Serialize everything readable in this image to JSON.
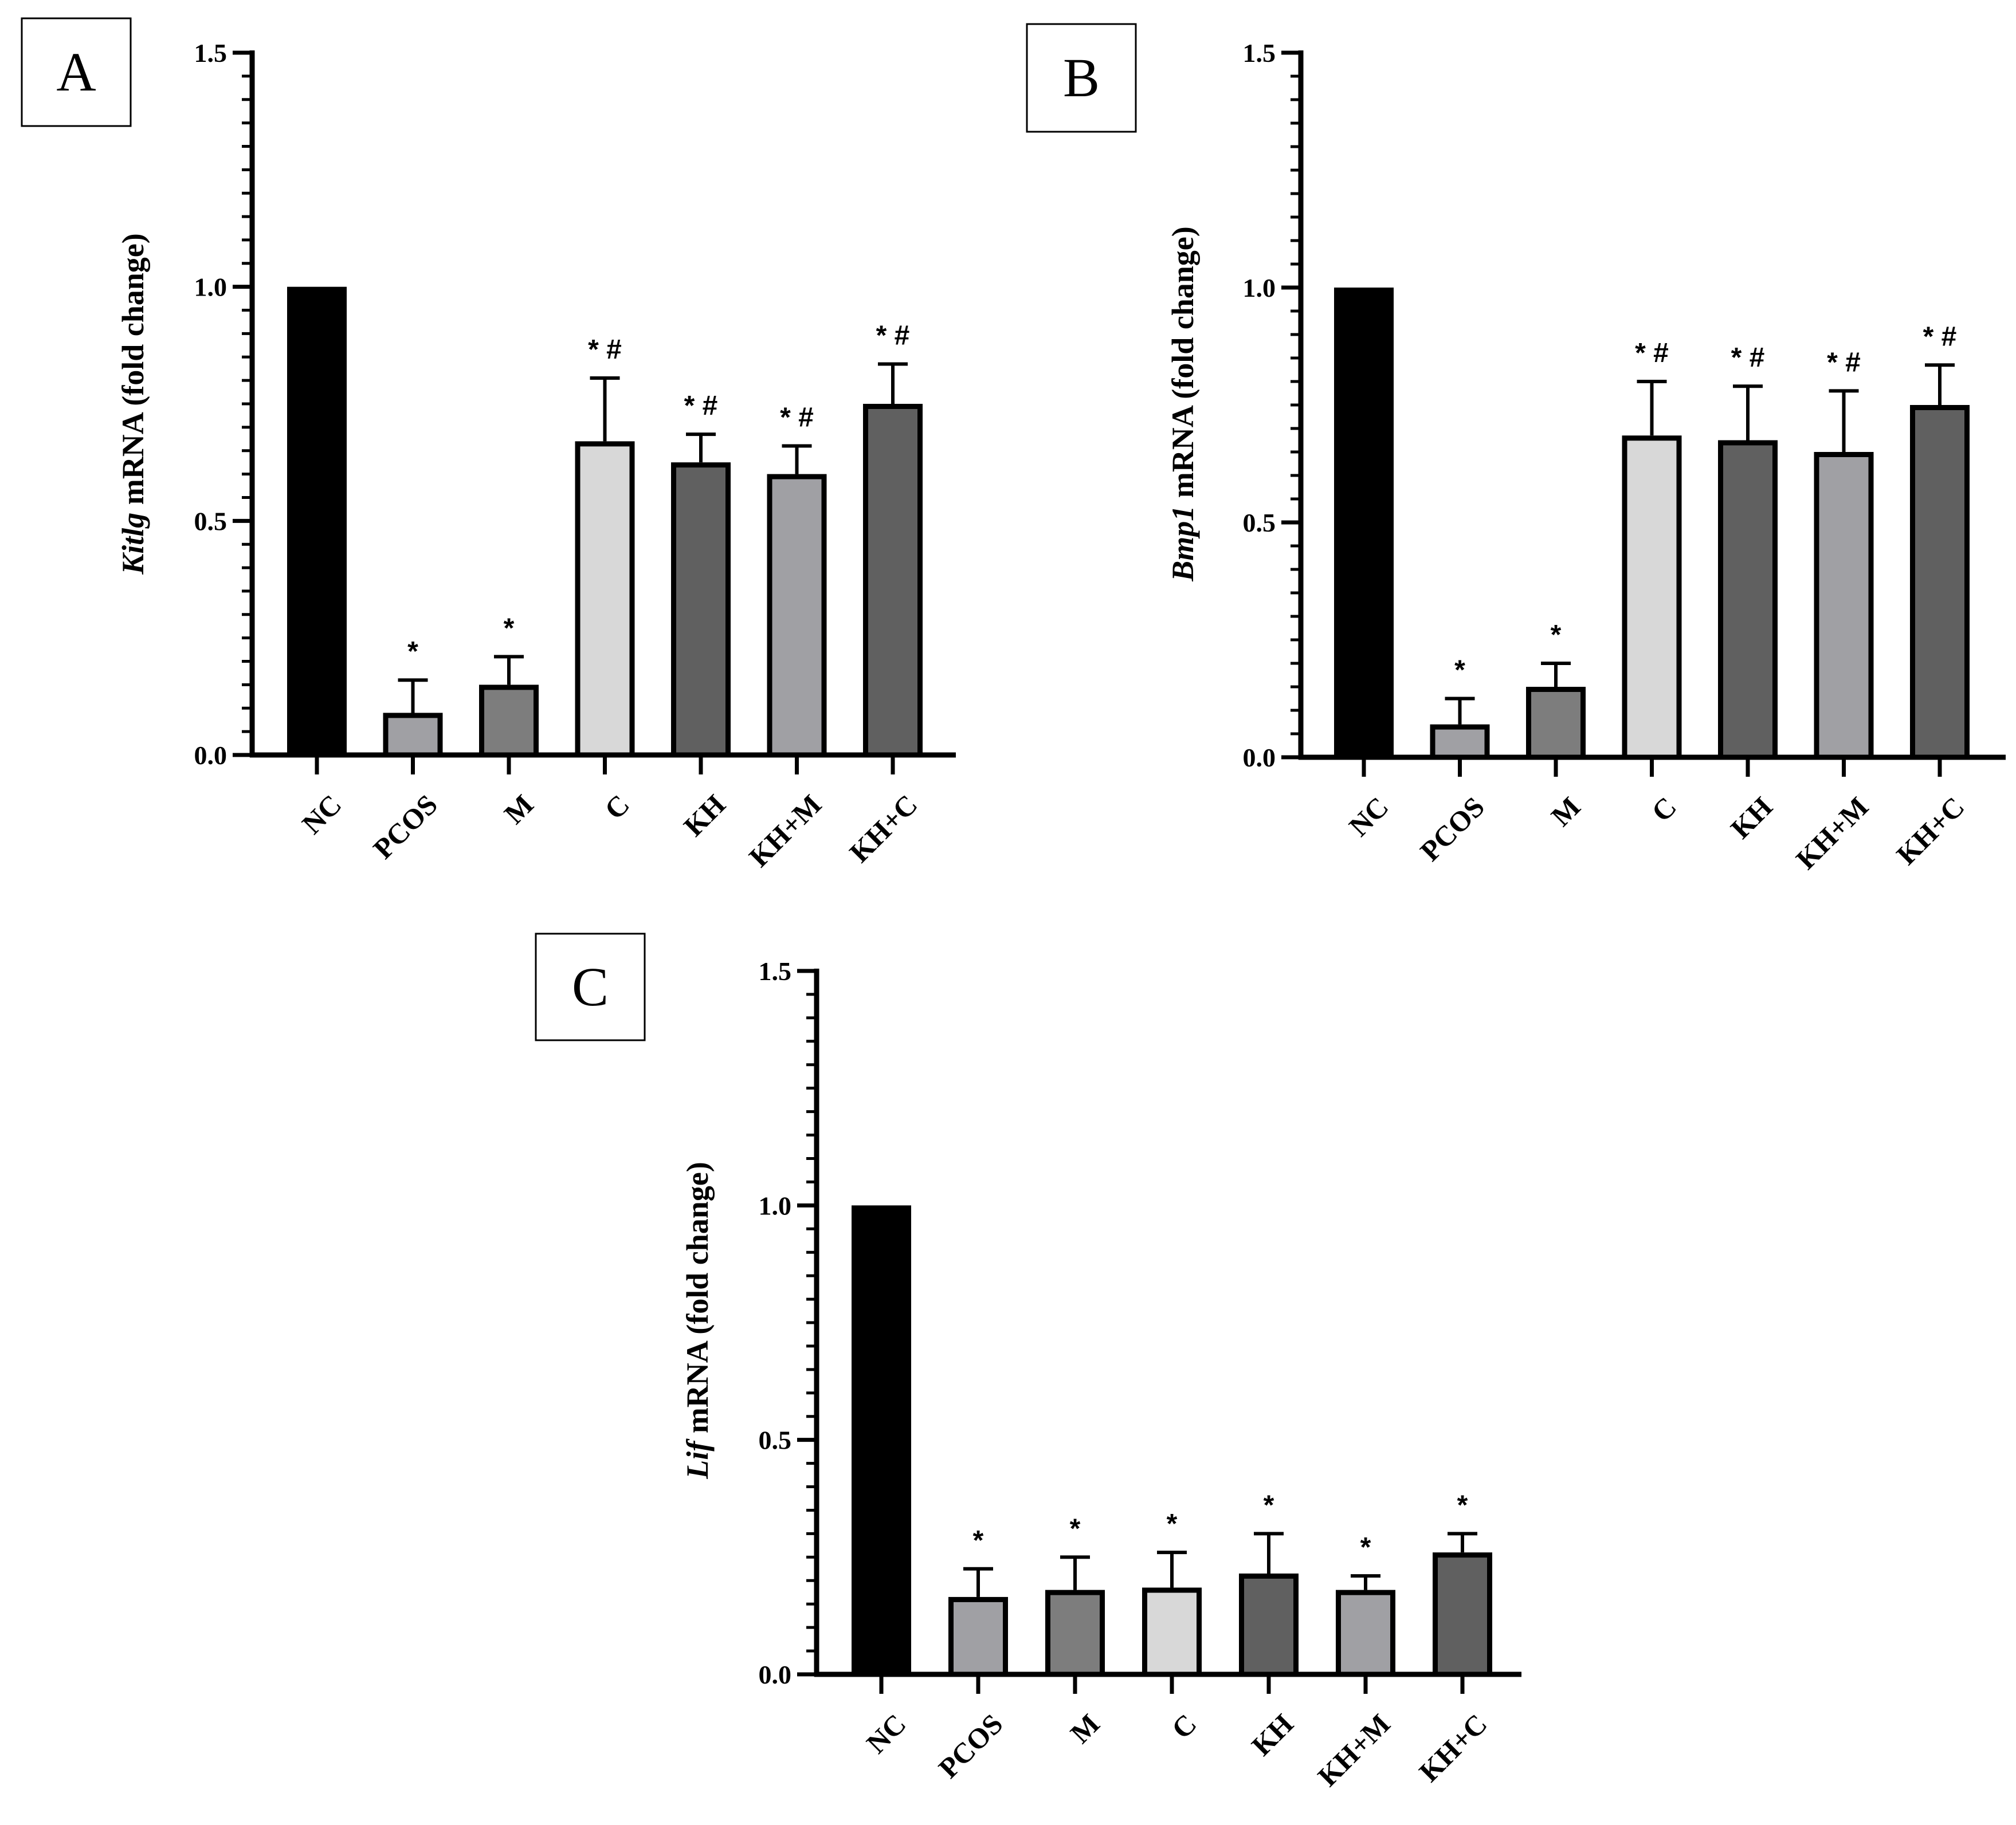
{
  "chart_data": [
    {
      "panel": "A",
      "type": "bar",
      "gene": "Kitlg",
      "ylabel_suffix": " mRNA (fold change)",
      "categories": [
        "NC",
        "PCOS",
        "M",
        "C",
        "KH",
        "KH+M",
        "KH+C"
      ],
      "values": [
        1.0,
        0.09,
        0.15,
        0.67,
        0.625,
        0.6,
        0.75
      ],
      "errors": [
        0,
        0.07,
        0.06,
        0.135,
        0.06,
        0.06,
        0.085
      ],
      "significance": [
        "",
        "*",
        "*",
        "* #",
        "* #",
        "* #",
        "* #"
      ],
      "ylim": [
        0,
        1.5
      ],
      "yticks": [
        "0.0",
        "0.5",
        "1.0",
        "1.5"
      ]
    },
    {
      "panel": "B",
      "type": "bar",
      "gene": "Bmp1",
      "ylabel_suffix": " mRNA (fold change)",
      "categories": [
        "NC",
        "PCOS",
        "M",
        "C",
        "KH",
        "KH+M",
        "KH+C"
      ],
      "values": [
        1.0,
        0.07,
        0.15,
        0.685,
        0.675,
        0.65,
        0.75
      ],
      "errors": [
        0,
        0.055,
        0.05,
        0.115,
        0.115,
        0.13,
        0.085
      ],
      "significance": [
        "",
        "*",
        "*",
        "* #",
        "* #",
        "* #",
        "* #"
      ],
      "ylim": [
        0,
        1.5
      ],
      "yticks": [
        "0.0",
        "0.5",
        "1.0",
        "1.5"
      ]
    },
    {
      "panel": "C",
      "type": "bar",
      "gene": "Lif",
      "ylabel_suffix": " mRNA (fold change)",
      "categories": [
        "NC",
        "PCOS",
        "M",
        "C",
        "KH",
        "KH+M",
        "KH+C"
      ],
      "values": [
        1.0,
        0.165,
        0.18,
        0.185,
        0.215,
        0.18,
        0.26
      ],
      "errors": [
        0,
        0.06,
        0.07,
        0.075,
        0.085,
        0.03,
        0.04
      ],
      "significance": [
        "",
        "*",
        "*",
        "*",
        "*",
        "*",
        "*"
      ],
      "ylim": [
        0,
        1.5
      ],
      "yticks": [
        "0.0",
        "0.5",
        "1.0",
        "1.5"
      ]
    }
  ],
  "colors": {
    "NC": "#000000",
    "PCOS": "#a0a0a4",
    "M": "#7d7d7d",
    "C": "#d8d8d8",
    "KH": "#606060",
    "KH+M": "#a0a0a4",
    "KH+C": "#606060"
  }
}
